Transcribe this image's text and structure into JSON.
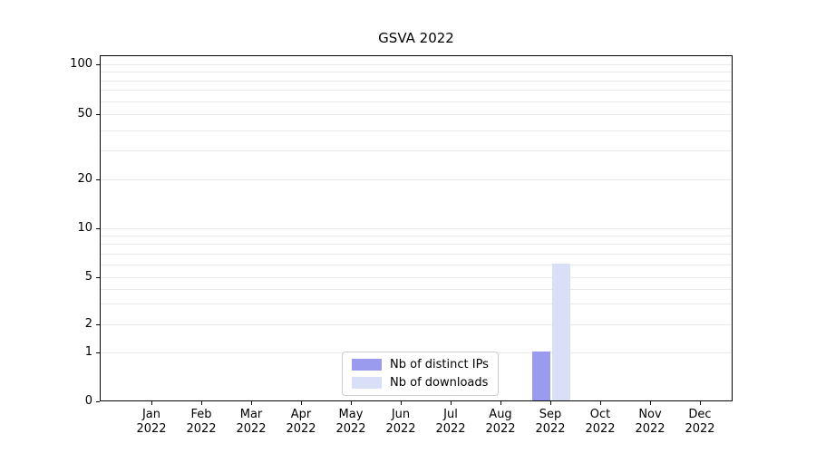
{
  "chart_data": {
    "type": "bar",
    "title": "GSVA 2022",
    "categories": [
      "Jan",
      "Feb",
      "Mar",
      "Apr",
      "May",
      "Jun",
      "Jul",
      "Aug",
      "Sep",
      "Oct",
      "Nov",
      "Dec"
    ],
    "category_sublabel": "2022",
    "series": [
      {
        "name": "Nb of distinct IPs",
        "color": "#9a9aee",
        "values": [
          0,
          0,
          0,
          0,
          0,
          0,
          0,
          0,
          1,
          0,
          0,
          0
        ]
      },
      {
        "name": "Nb of downloads",
        "color": "#dadff8",
        "values": [
          0,
          0,
          0,
          0,
          0,
          0,
          0,
          0,
          6,
          0,
          0,
          0
        ]
      }
    ],
    "y_axis": {
      "scale": "symlog",
      "ticks": [
        0,
        1,
        2,
        5,
        10,
        20,
        50,
        100
      ],
      "minor_gridlines": [
        1,
        2,
        3,
        4,
        5,
        6,
        7,
        8,
        9,
        10,
        20,
        30,
        40,
        50,
        60,
        70,
        80,
        90,
        100
      ],
      "ylim": [
        0,
        120
      ]
    },
    "x_axis": {
      "label": "",
      "tick_year": "2022"
    },
    "legend": {
      "position": "lower-center"
    },
    "colors": {
      "grid": "#e9e9e9",
      "spine": "#000000",
      "text": "#000000",
      "background": "#ffffff"
    }
  }
}
